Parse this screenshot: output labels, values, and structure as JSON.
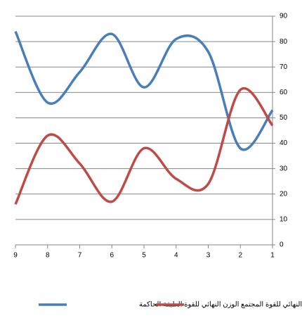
{
  "chart_data": {
    "type": "line",
    "x": [
      9,
      8,
      7,
      6,
      5,
      4,
      3,
      2,
      1
    ],
    "xlim": [
      9,
      1
    ],
    "xticks": [
      9,
      8,
      7,
      6,
      5,
      4,
      3,
      2,
      1
    ],
    "ylim": [
      0,
      90
    ],
    "yticks": [
      0,
      10,
      20,
      30,
      40,
      50,
      60,
      70,
      80,
      90
    ],
    "grid": true,
    "smooth": true,
    "legend": "bottom",
    "series": [
      {
        "name": "الوزن النهائي للقوة الطبقة الحاكمة",
        "color": "#4a7ebb",
        "values": [
          84,
          56,
          68,
          83,
          62,
          81,
          76,
          38,
          53
        ]
      },
      {
        "name": "الوزن النهائي للقوة المجتمع",
        "color": "#be4b48",
        "values": [
          16,
          43,
          32,
          17,
          38,
          26,
          24,
          61,
          47
        ]
      }
    ]
  }
}
